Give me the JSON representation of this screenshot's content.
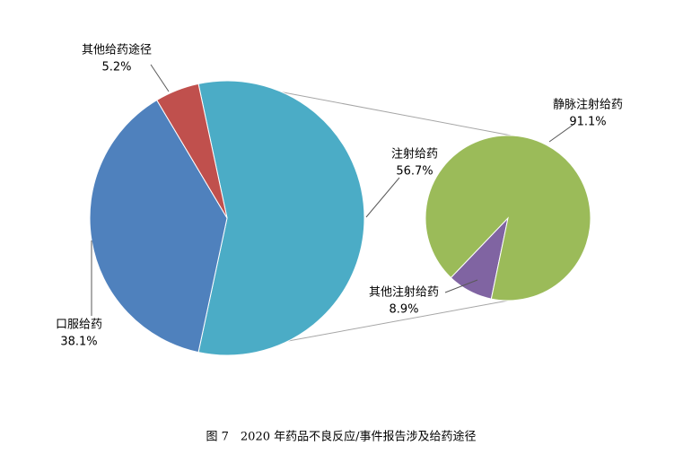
{
  "caption": "图 7　2020 年药品不良反应/事件报告涉及给药途径",
  "chart_data": [
    {
      "type": "pie",
      "categories": [
        "注射给药",
        "口服给药",
        "其他给药途径"
      ],
      "values": [
        56.7,
        38.1,
        5.2
      ],
      "value_labels": [
        "56.7%",
        "38.1%",
        "5.2%"
      ],
      "colors": [
        "#4bacc6",
        "#4f81bd",
        "#c0504d"
      ]
    },
    {
      "type": "pie",
      "categories": [
        "其他注射给药",
        "静脉注射给药"
      ],
      "values": [
        8.9,
        91.1
      ],
      "value_labels": [
        "8.9%",
        "91.1%"
      ],
      "colors": [
        "#8064a2",
        "#9bbb59"
      ]
    }
  ]
}
